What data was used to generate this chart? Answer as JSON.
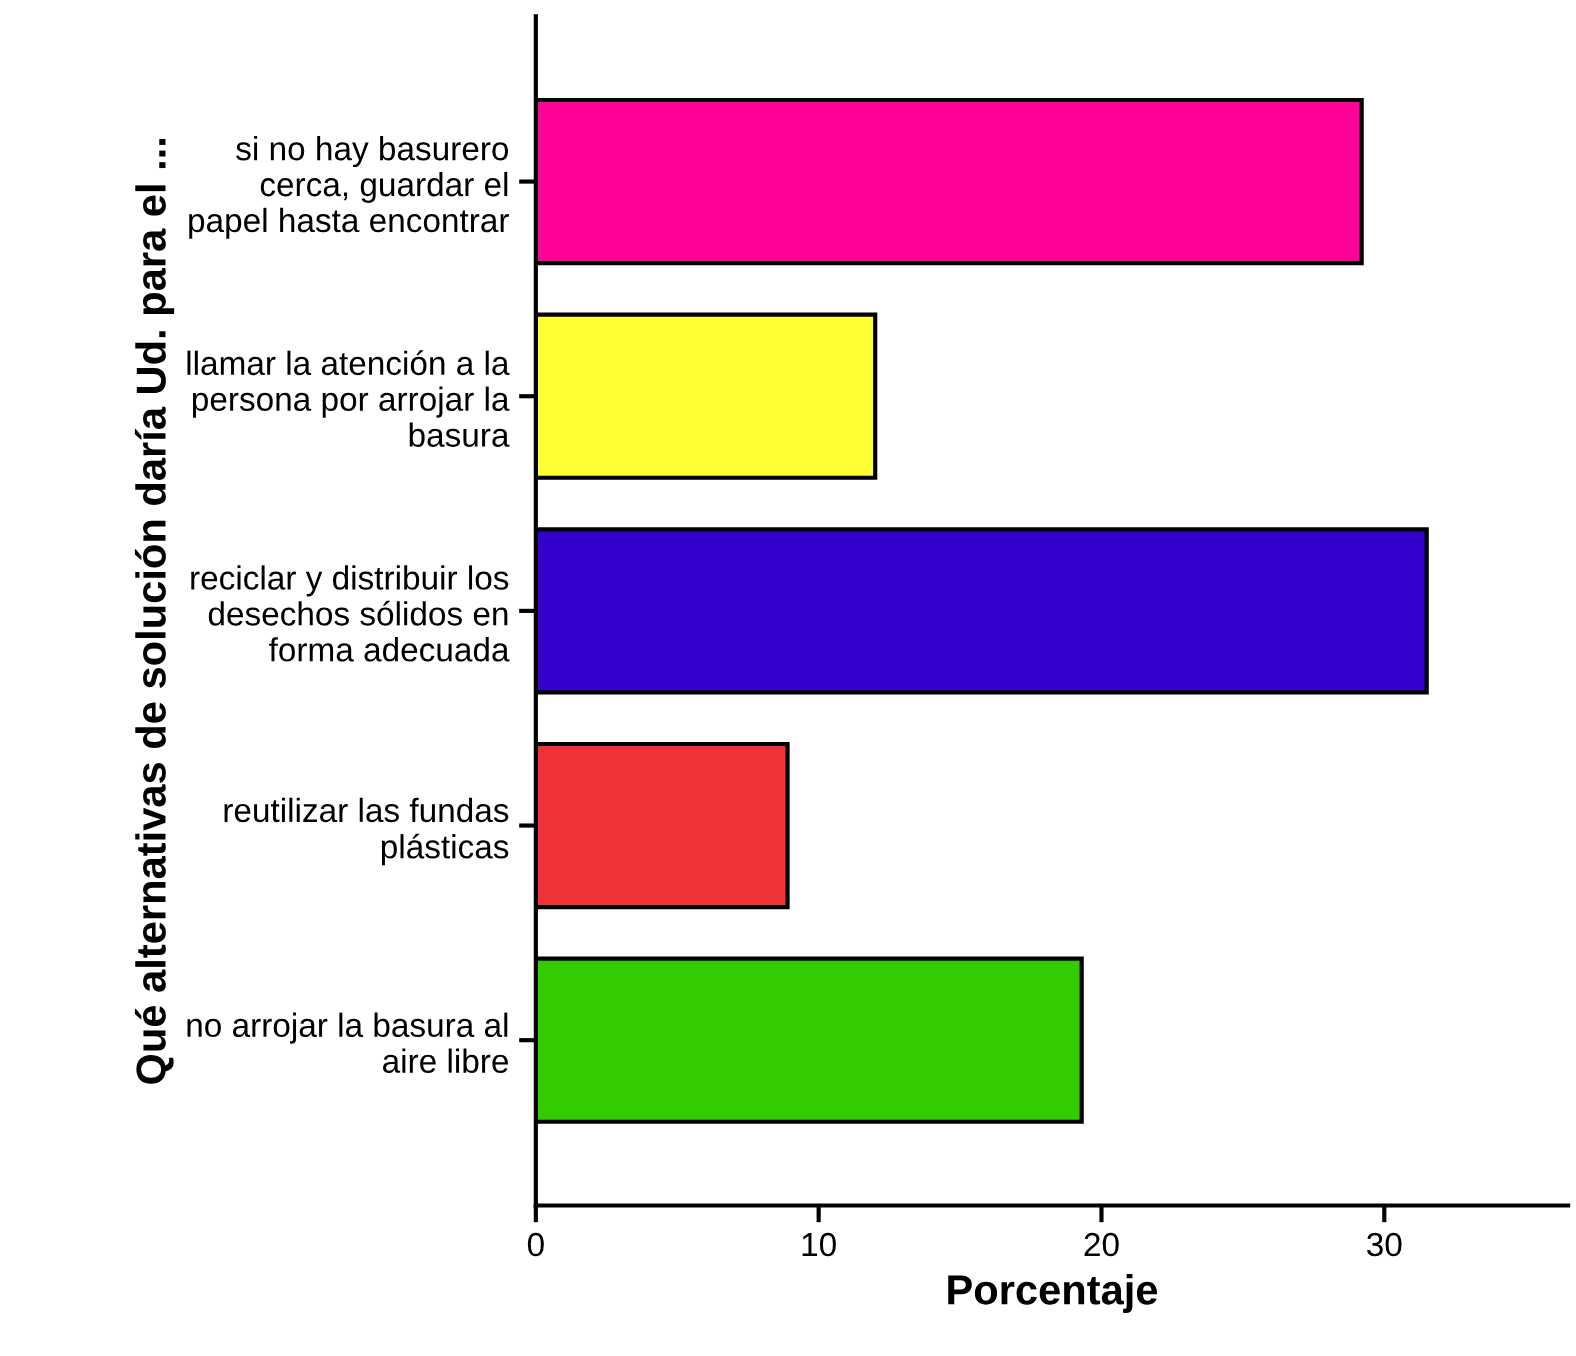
{
  "chart_data": {
    "type": "bar",
    "orientation": "horizontal",
    "categories": [
      "si no hay basurero\ncerca, guardar el\npapel hasta encontrar",
      "llamar la atención a la\npersona por arrojar la\nbasura",
      "reciclar y distribuir los\ndesechos sólidos en\nforma adecuada",
      "reutilizar las fundas\nplásticas",
      "no arrojar la basura al\naire libre"
    ],
    "values": [
      29.2,
      12.0,
      31.5,
      8.9,
      19.3
    ],
    "colors": [
      "#ff0399",
      "#ffff33",
      "#3300cc",
      "#f03339",
      "#33cc00"
    ],
    "xlabel": "Porcentaje",
    "ylabel": "Qué alternativas de solución daría Ud. para el ...",
    "xlim": [
      0,
      36.5
    ],
    "xticks": [
      0,
      10,
      20,
      30
    ],
    "grid": false
  }
}
